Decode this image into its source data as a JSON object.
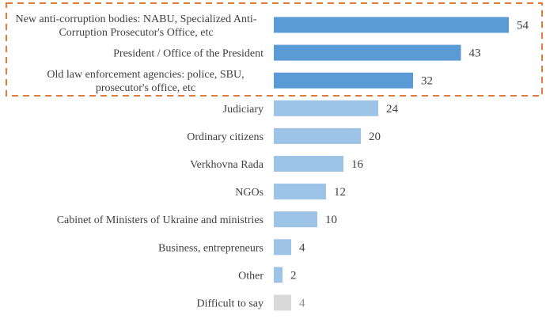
{
  "chart_data": {
    "type": "bar",
    "orientation": "horizontal",
    "title": "",
    "xlabel": "",
    "ylabel": "",
    "xlim": [
      0,
      54
    ],
    "grid": false,
    "legend": null,
    "categories": [
      "New anti-corruption bodies: NABU, Specialized Anti-Corruption Prosecutor's Office, etc",
      "President / Office of the President",
      "Old law enforcement agencies: police, SBU, prosecutor's office, etc",
      "Judiciary",
      "Ordinary citizens",
      "Verkhovna Rada",
      "NGOs",
      "Cabinet of Ministers of Ukraine and ministries",
      "Business, entrepreneurs",
      "Other",
      "Difficult to say"
    ],
    "label_lines": [
      [
        "New anti-corruption bodies: NABU, Specialized Anti-",
        "Corruption Prosecutor's Office, etc"
      ],
      [
        "President / Office of the President"
      ],
      [
        "Old law enforcement agencies: police, SBU,",
        "prosecutor's office, etc"
      ],
      [
        "Judiciary"
      ],
      [
        "Ordinary citizens"
      ],
      [
        "Verkhovna Rada"
      ],
      [
        "NGOs"
      ],
      [
        "Cabinet of Ministers of Ukraine and ministries"
      ],
      [
        "Business, entrepreneurs"
      ],
      [
        "Other"
      ],
      [
        "Difficult to say"
      ]
    ],
    "values": [
      54,
      43,
      32,
      24,
      20,
      16,
      12,
      10,
      4,
      2,
      4
    ],
    "bar_groups": [
      "highlight",
      "highlight",
      "highlight",
      "normal",
      "normal",
      "normal",
      "normal",
      "normal",
      "normal",
      "normal",
      "neutral"
    ],
    "annotations": [
      {
        "type": "dashed-box",
        "encloses": [
          "New anti-corruption bodies: NABU, Specialized Anti-Corruption Prosecutor's Office, etc",
          "President / Office of the President",
          "Old law enforcement agencies: police, SBU, prosecutor's office, etc"
        ]
      }
    ],
    "colors": {
      "highlight": "#5b9bd5",
      "normal": "#9dc3e6",
      "neutral": "#d9d9d9",
      "highlight_box": "#e07b39",
      "text": "#404040",
      "muted_text": "#8c8c8c"
    }
  }
}
